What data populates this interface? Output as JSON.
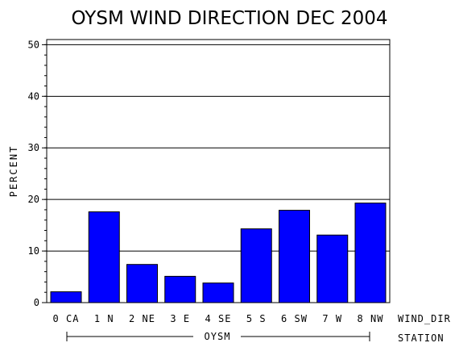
{
  "chart_data": {
    "type": "bar",
    "title": "OYSM WIND DIRECTION DEC 2004",
    "ylabel": "PERCENT",
    "xlabel": "WIND_DIR",
    "group_axis_label": "STATION",
    "group_name": "OYSM",
    "categories": [
      "0 CA",
      "1 N",
      "2 NE",
      "3 E",
      "4 SE",
      "5 S",
      "6 SW",
      "7 W",
      "8 NW"
    ],
    "values": [
      2.1,
      17.6,
      7.4,
      5.1,
      3.8,
      14.3,
      17.9,
      13.1,
      19.3
    ],
    "ylim": [
      0,
      51
    ],
    "yticks": [
      "0",
      "10",
      "20",
      "30",
      "40",
      "50"
    ],
    "grid": true,
    "bar_color": "#0000ff"
  }
}
